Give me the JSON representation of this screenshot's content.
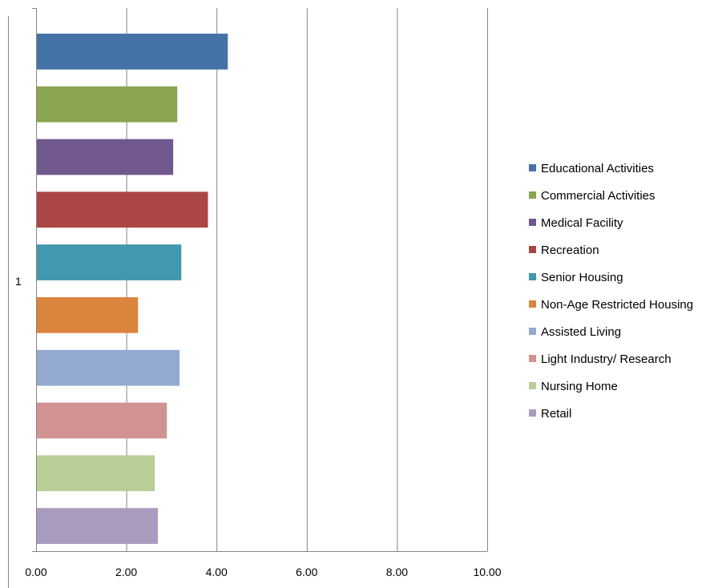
{
  "chart_data": {
    "type": "bar",
    "orientation": "horizontal",
    "category_label": "1",
    "xlim": [
      0,
      10
    ],
    "x_ticks": [
      "0.00",
      "2.00",
      "4.00",
      "6.00",
      "8.00",
      "10.00"
    ],
    "grid": "vertical",
    "legend_position": "right",
    "series": [
      {
        "name": "Educational Activities",
        "value": 4.25,
        "color": "#4572A7"
      },
      {
        "name": "Commercial Activities",
        "value": 3.13,
        "color": "#89A54E"
      },
      {
        "name": "Medical Facility",
        "value": 3.04,
        "color": "#71588F"
      },
      {
        "name": "Recreation",
        "value": 3.81,
        "color": "#AA4643"
      },
      {
        "name": "Senior Housing",
        "value": 3.22,
        "color": "#4198AF"
      },
      {
        "name": "Non-Age Restricted Housing",
        "value": 2.26,
        "color": "#DB843D"
      },
      {
        "name": "Assisted Living",
        "value": 3.18,
        "color": "#93A9CF"
      },
      {
        "name": "Light Industry/ Research",
        "value": 2.9,
        "color": "#D19392"
      },
      {
        "name": "Nursing Home",
        "value": 2.63,
        "color": "#B9CD96"
      },
      {
        "name": "Retail",
        "value": 2.7,
        "color": "#A99BBD"
      }
    ]
  }
}
